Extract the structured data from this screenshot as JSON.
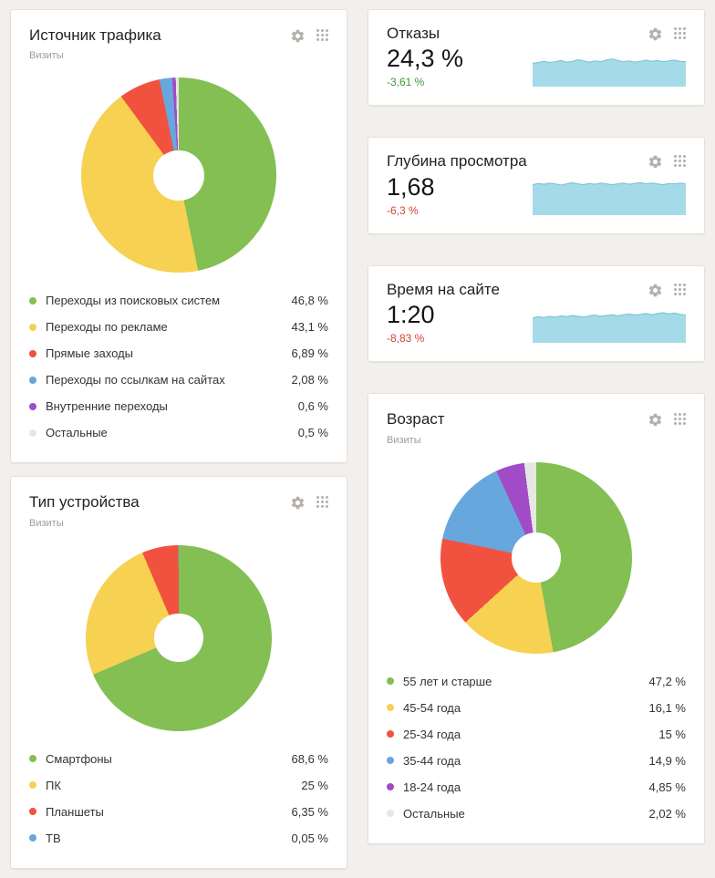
{
  "colors": {
    "page_bg": "#f2efec",
    "delta_good": "#3b9a32",
    "delta_bad": "#cf4436",
    "spark_fill": "#a5dbe8",
    "spark_stroke": "#7cc6d6"
  },
  "widgets": {
    "traffic_source": {
      "title": "Источник трафика",
      "subtitle": "Визиты"
    },
    "device_type": {
      "title": "Тип устройства",
      "subtitle": "Визиты"
    },
    "age": {
      "title": "Возраст",
      "subtitle": "Визиты"
    },
    "bounces": {
      "title": "Отказы",
      "value": "24,3 %",
      "delta": "-3,61 %",
      "delta_color": "#3b9a32"
    },
    "depth": {
      "title": "Глубина просмотра",
      "value": "1,68",
      "delta": "-6,3 %",
      "delta_color": "#cf4436"
    },
    "time_on_site": {
      "title": "Время на сайте",
      "value": "1:20",
      "delta": "-8,83 %",
      "delta_color": "#cf4436"
    }
  },
  "chart_data": {
    "traffic_source": {
      "type": "pie",
      "donut": true,
      "title": "Источник трафика",
      "units": "Визиты",
      "items": [
        {
          "label": "Переходы из поисковых систем",
          "value": 46.8,
          "value_text": "46,8 %",
          "color": "#83bf52"
        },
        {
          "label": "Переходы по рекламе",
          "value": 43.1,
          "value_text": "43,1 %",
          "color": "#f6d152"
        },
        {
          "label": "Прямые заходы",
          "value": 6.89,
          "value_text": "6,89 %",
          "color": "#f1523f"
        },
        {
          "label": "Переходы по ссылкам на сайтах",
          "value": 2.08,
          "value_text": "2,08 %",
          "color": "#67a7de"
        },
        {
          "label": "Внутренние переходы",
          "value": 0.6,
          "value_text": "0,6 %",
          "color": "#a14cc6"
        },
        {
          "label": "Остальные",
          "value": 0.5,
          "value_text": "0,5 %",
          "color": "#e8e6e2"
        }
      ]
    },
    "device_type": {
      "type": "pie",
      "donut": true,
      "title": "Тип устройства",
      "units": "Визиты",
      "items": [
        {
          "label": "Смартфоны",
          "value": 68.6,
          "value_text": "68,6 %",
          "color": "#83bf52"
        },
        {
          "label": "ПК",
          "value": 25,
          "value_text": "25 %",
          "color": "#f6d152"
        },
        {
          "label": "Планшеты",
          "value": 6.35,
          "value_text": "6,35 %",
          "color": "#f1523f"
        },
        {
          "label": "ТВ",
          "value": 0.05,
          "value_text": "0,05 %",
          "color": "#67a7de"
        }
      ]
    },
    "age": {
      "type": "pie",
      "donut": true,
      "title": "Возраст",
      "units": "Визиты",
      "items": [
        {
          "label": "55 лет и старше",
          "value": 47.2,
          "value_text": "47,2 %",
          "color": "#83bf52"
        },
        {
          "label": "45-54 года",
          "value": 16.1,
          "value_text": "16,1 %",
          "color": "#f6d152"
        },
        {
          "label": "25-34 года",
          "value": 15,
          "value_text": "15 %",
          "color": "#f1523f"
        },
        {
          "label": "35-44 года",
          "value": 14.9,
          "value_text": "14,9 %",
          "color": "#67a7de"
        },
        {
          "label": "18-24 года",
          "value": 4.85,
          "value_text": "4,85 %",
          "color": "#a14cc6"
        },
        {
          "label": "Остальные",
          "value": 2.02,
          "value_text": "2,02 %",
          "color": "#e8e6e2"
        }
      ]
    },
    "bounce_trend": {
      "type": "area",
      "metric": "Отказы",
      "current_value": "24,3 %",
      "change": "-3,61 %",
      "values": [
        0.58,
        0.6,
        0.63,
        0.6,
        0.62,
        0.65,
        0.61,
        0.63,
        0.67,
        0.64,
        0.61,
        0.64,
        0.62,
        0.66,
        0.69,
        0.65,
        0.62,
        0.64,
        0.61,
        0.63,
        0.66,
        0.63,
        0.65,
        0.62,
        0.64,
        0.66,
        0.63,
        0.62
      ]
    },
    "depth_trend": {
      "type": "area",
      "metric": "Глубина просмотра",
      "current_value": "1,68",
      "change": "-6,3 %",
      "values": [
        0.76,
        0.79,
        0.77,
        0.8,
        0.78,
        0.75,
        0.78,
        0.81,
        0.78,
        0.76,
        0.79,
        0.77,
        0.8,
        0.78,
        0.76,
        0.78,
        0.8,
        0.77,
        0.79,
        0.81,
        0.78,
        0.8,
        0.78,
        0.76,
        0.79,
        0.78,
        0.8,
        0.78
      ]
    },
    "time_trend": {
      "type": "area",
      "metric": "Время на сайте",
      "current_value": "1:20",
      "change": "-8,83 %",
      "values": [
        0.62,
        0.65,
        0.63,
        0.66,
        0.64,
        0.67,
        0.65,
        0.68,
        0.66,
        0.64,
        0.67,
        0.69,
        0.66,
        0.68,
        0.7,
        0.67,
        0.7,
        0.72,
        0.69,
        0.71,
        0.73,
        0.7,
        0.73,
        0.75,
        0.72,
        0.74,
        0.71,
        0.69
      ]
    }
  }
}
